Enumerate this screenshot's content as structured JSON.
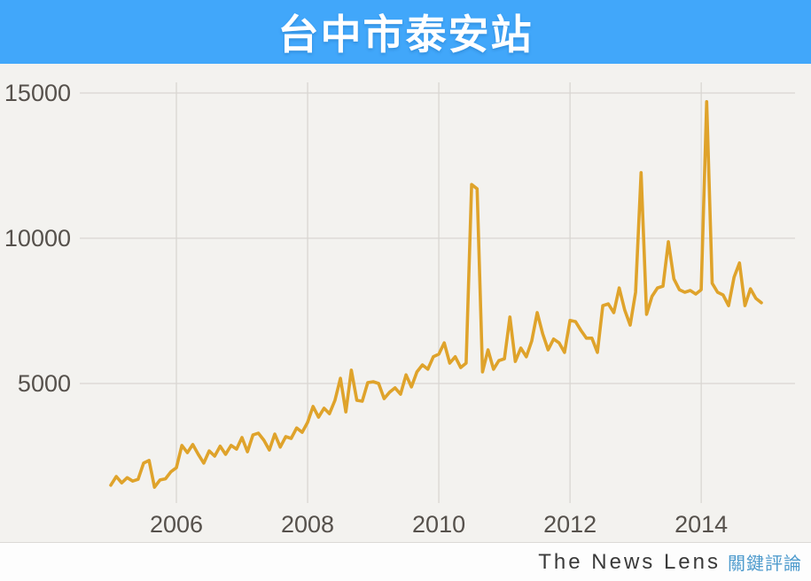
{
  "header": {
    "title": "台中市泰安站",
    "bg_color": "#41A7FA",
    "title_color": "#FFFFFF"
  },
  "footer": {
    "brand_en": "The News Lens",
    "brand_zh": "關鍵評論",
    "brand_zh_color": "#4E9BCD"
  },
  "chart_data": {
    "type": "line",
    "title": "台中市泰安站",
    "xlabel": "",
    "ylabel": "",
    "grid": true,
    "legend": "none",
    "line_color": "#DFA32B",
    "background_color": "#F3F2EF",
    "gridline_color": "#D9D6D2",
    "tick_color": "#56514C",
    "start_year": 2005,
    "x_range": [
      "2005-01",
      "2014-12"
    ],
    "x_ticks": [
      2006,
      2008,
      2010,
      2012,
      2014
    ],
    "x_tick_labels": [
      "2006",
      "2008",
      "2010",
      "2012",
      "2014"
    ],
    "y_ticks": [
      5000,
      10000,
      15000
    ],
    "y_tick_labels": [
      "5000",
      "10000",
      "15000"
    ],
    "ylim": [
      900,
      15400
    ],
    "series": [
      {
        "name": "monthly-passengers",
        "values": [
          1500,
          1800,
          1580,
          1760,
          1640,
          1700,
          2260,
          2350,
          1430,
          1680,
          1720,
          1960,
          2100,
          2870,
          2620,
          2900,
          2560,
          2260,
          2680,
          2500,
          2840,
          2560,
          2870,
          2740,
          3140,
          2650,
          3230,
          3290,
          3050,
          2710,
          3260,
          2810,
          3170,
          3110,
          3470,
          3320,
          3660,
          4210,
          3840,
          4150,
          3960,
          4420,
          5180,
          4020,
          5460,
          4420,
          4390,
          5030,
          5060,
          5000,
          4480,
          4700,
          4850,
          4630,
          5300,
          4880,
          5400,
          5640,
          5490,
          5920,
          6010,
          6400,
          5700,
          5920,
          5550,
          5700,
          11850,
          11700,
          5400,
          6160,
          5490,
          5790,
          5850,
          7290,
          5760,
          6220,
          5920,
          6460,
          7440,
          6710,
          6160,
          6530,
          6400,
          6070,
          7170,
          7130,
          6830,
          6560,
          6560,
          6070,
          7680,
          7740,
          7440,
          8290,
          7530,
          7010,
          8140,
          12260,
          7380,
          8000,
          8290,
          8350,
          9880,
          8600,
          8230,
          8140,
          8200,
          8080,
          8230,
          14700,
          8450,
          8140,
          8050,
          7680,
          8660,
          9150,
          7680,
          8260,
          7930,
          7780
        ]
      }
    ]
  }
}
